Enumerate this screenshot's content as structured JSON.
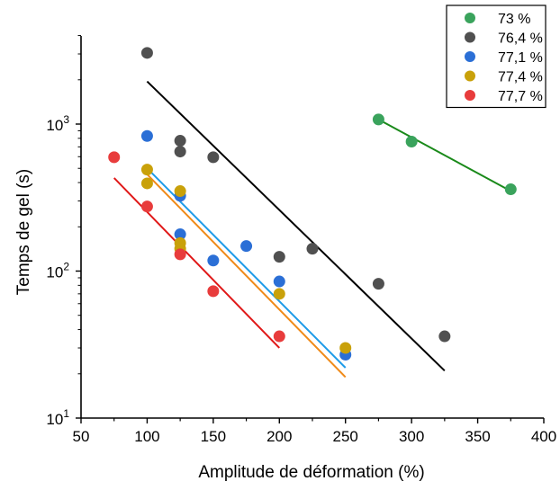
{
  "chart_data": {
    "type": "scatter",
    "title": "",
    "xlabel": "Amplitude de déformation (%)",
    "ylabel": "Temps de gel (s)",
    "xlim": [
      50,
      400
    ],
    "ylim": [
      10,
      4000
    ],
    "xscale": "linear",
    "yscale": "log",
    "x_ticks": [
      50,
      100,
      150,
      200,
      250,
      300,
      350,
      400
    ],
    "y_ticks": [
      {
        "value": 10,
        "base": "10",
        "exp": "1"
      },
      {
        "value": 100,
        "base": "10",
        "exp": "2"
      },
      {
        "value": 1000,
        "base": "10",
        "exp": "3"
      }
    ],
    "grid": false,
    "legend_position": "top-right",
    "series": [
      {
        "name": "73 %",
        "color": "#3aa35c",
        "line_color": "#1a8a1a",
        "points": [
          [
            275,
            1075
          ],
          [
            300,
            760
          ],
          [
            375,
            360
          ]
        ],
        "fit": [
          [
            275,
            1075
          ],
          [
            375,
            350
          ]
        ]
      },
      {
        "name": "76,4 %",
        "color": "#505050",
        "line_color": "#000000",
        "points": [
          [
            100,
            3050
          ],
          [
            125,
            770
          ],
          [
            125,
            650
          ],
          [
            150,
            595
          ],
          [
            200,
            125
          ],
          [
            225,
            142
          ],
          [
            275,
            82
          ],
          [
            325,
            36
          ]
        ],
        "fit": [
          [
            100,
            1950
          ],
          [
            325,
            21
          ]
        ]
      },
      {
        "name": "77,1 %",
        "color": "#2b6fd6",
        "line_color": "#1e9be8",
        "points": [
          [
            100,
            830
          ],
          [
            125,
            325
          ],
          [
            125,
            178
          ],
          [
            150,
            118
          ],
          [
            175,
            148
          ],
          [
            200,
            85
          ],
          [
            250,
            27
          ]
        ],
        "fit": [
          [
            100,
            500
          ],
          [
            250,
            22
          ]
        ]
      },
      {
        "name": "77,4 %",
        "color": "#c9a10a",
        "line_color": "#f08a18",
        "points": [
          [
            100,
            490
          ],
          [
            100,
            395
          ],
          [
            125,
            350
          ],
          [
            125,
            155
          ],
          [
            125,
            142
          ],
          [
            200,
            70
          ],
          [
            250,
            30
          ]
        ],
        "fit": [
          [
            100,
            455
          ],
          [
            250,
            19
          ]
        ]
      },
      {
        "name": "77,7 %",
        "color": "#e83c3c",
        "line_color": "#e01818",
        "points": [
          [
            75,
            595
          ],
          [
            100,
            275
          ],
          [
            125,
            130
          ],
          [
            150,
            73
          ],
          [
            200,
            36
          ]
        ],
        "fit": [
          [
            75,
            430
          ],
          [
            200,
            30
          ]
        ]
      }
    ]
  }
}
